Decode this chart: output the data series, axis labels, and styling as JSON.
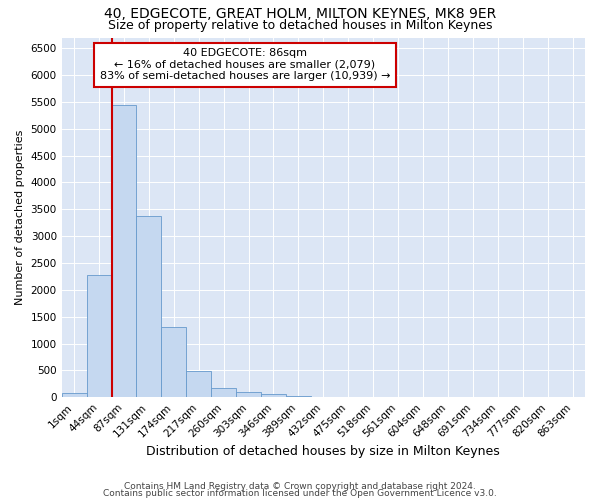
{
  "title": "40, EDGECOTE, GREAT HOLM, MILTON KEYNES, MK8 9ER",
  "subtitle": "Size of property relative to detached houses in Milton Keynes",
  "xlabel": "Distribution of detached houses by size in Milton Keynes",
  "ylabel": "Number of detached properties",
  "footer_line1": "Contains HM Land Registry data © Crown copyright and database right 2024.",
  "footer_line2": "Contains public sector information licensed under the Open Government Licence v3.0.",
  "annotation_line1": "40 EDGECOTE: 86sqm",
  "annotation_line2": "← 16% of detached houses are smaller (2,079)",
  "annotation_line3": "83% of semi-detached houses are larger (10,939) →",
  "bar_color": "#c5d8f0",
  "bar_edge_color": "#6699cc",
  "bg_color": "#dce6f5",
  "red_line_color": "#cc0000",
  "annotation_box_color": "#cc0000",
  "categories": [
    "1sqm",
    "44sqm",
    "87sqm",
    "131sqm",
    "174sqm",
    "217sqm",
    "260sqm",
    "303sqm",
    "346sqm",
    "389sqm",
    "432sqm",
    "475sqm",
    "518sqm",
    "561sqm",
    "604sqm",
    "648sqm",
    "691sqm",
    "734sqm",
    "777sqm",
    "820sqm",
    "863sqm"
  ],
  "values": [
    75,
    2280,
    5450,
    3380,
    1300,
    480,
    175,
    90,
    65,
    20,
    10,
    5,
    3,
    2,
    1,
    1,
    0,
    0,
    0,
    0,
    0
  ],
  "red_line_x": 1.5,
  "ylim": [
    0,
    6700
  ],
  "yticks": [
    0,
    500,
    1000,
    1500,
    2000,
    2500,
    3000,
    3500,
    4000,
    4500,
    5000,
    5500,
    6000,
    6500
  ],
  "title_fontsize": 10,
  "subtitle_fontsize": 9,
  "xlabel_fontsize": 9,
  "ylabel_fontsize": 8,
  "tick_fontsize": 7.5,
  "annotation_fontsize": 8,
  "footer_fontsize": 6.5
}
